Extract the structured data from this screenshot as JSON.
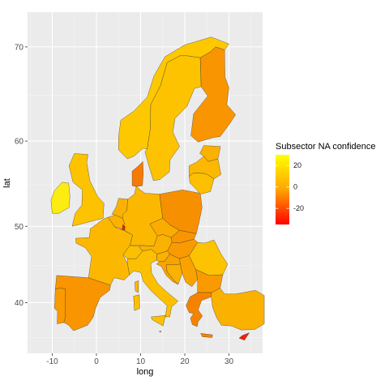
{
  "chart_data": {
    "type": "heatmap",
    "kind": "choropleth map",
    "xlabel": "long",
    "ylabel": "lat",
    "x_ticks": [
      "-10",
      "0",
      "10",
      "20",
      "30"
    ],
    "y_ticks": [
      "40",
      "50",
      "60",
      "70"
    ],
    "xlim": [
      -15,
      37.5
    ],
    "ylim": [
      33,
      75
    ],
    "grid": true,
    "legend": {
      "title": "Subsector  NA  confidence",
      "placement": "right",
      "ticks": [
        "20",
        "0",
        "-20"
      ],
      "range": [
        -35,
        30
      ],
      "colors": {
        "low": "#ff0000",
        "mid": "#ffa500",
        "high": "#ffff00"
      }
    },
    "panel_background": "#ebebeb",
    "region_outline_color": "#333333",
    "regions": [
      {
        "name": "Ireland",
        "value": 24,
        "color": "#fdec12"
      },
      {
        "name": "United Kingdom",
        "value": 10,
        "color": "#fdc300"
      },
      {
        "name": "Portugal",
        "value": -4,
        "color": "#f99a00"
      },
      {
        "name": "Spain",
        "value": -6,
        "color": "#f99500"
      },
      {
        "name": "France",
        "value": 6,
        "color": "#fcb800"
      },
      {
        "name": "Belgium",
        "value": 4,
        "color": "#fbb100"
      },
      {
        "name": "Netherlands",
        "value": 4,
        "color": "#fbb100"
      },
      {
        "name": "Luxembourg",
        "value": -30,
        "color": "#f22200"
      },
      {
        "name": "Germany",
        "value": 6,
        "color": "#fcb800"
      },
      {
        "name": "Denmark",
        "value": -12,
        "color": "#f67a00"
      },
      {
        "name": "Switzerland",
        "value": 8,
        "color": "#fcc000"
      },
      {
        "name": "Italy",
        "value": 8,
        "color": "#fcc000"
      },
      {
        "name": "Malta",
        "value": 0,
        "color": "#fca000"
      },
      {
        "name": "Austria",
        "value": 4,
        "color": "#fbb100"
      },
      {
        "name": "Czech Republic",
        "value": 2,
        "color": "#fbac00"
      },
      {
        "name": "Poland",
        "value": -8,
        "color": "#f79000"
      },
      {
        "name": "Slovakia",
        "value": -6,
        "color": "#f99500"
      },
      {
        "name": "Hungary",
        "value": -4,
        "color": "#f99b00"
      },
      {
        "name": "Slovenia",
        "value": 4,
        "color": "#fbb100"
      },
      {
        "name": "Croatia",
        "value": -2,
        "color": "#faa300"
      },
      {
        "name": "Bosnia and Herzegovina",
        "value": 4,
        "color": "#fbb100"
      },
      {
        "name": "Serbia",
        "value": -2,
        "color": "#faa300"
      },
      {
        "name": "Romania",
        "value": 10,
        "color": "#fdc300"
      },
      {
        "name": "Bulgaria",
        "value": -4,
        "color": "#f99b00"
      },
      {
        "name": "Greece",
        "value": -10,
        "color": "#f68300"
      },
      {
        "name": "Turkey",
        "value": 4,
        "color": "#fbb100"
      },
      {
        "name": "Cyprus",
        "value": -30,
        "color": "#f22200"
      },
      {
        "name": "Norway",
        "value": 12,
        "color": "#fdc800"
      },
      {
        "name": "Sweden",
        "value": 10,
        "color": "#fdc300"
      },
      {
        "name": "Finland",
        "value": -6,
        "color": "#f99500"
      },
      {
        "name": "Estonia",
        "value": 4,
        "color": "#fbb100"
      },
      {
        "name": "Latvia",
        "value": 6,
        "color": "#fcb800"
      },
      {
        "name": "Lithuania",
        "value": 8,
        "color": "#fcc000"
      }
    ]
  }
}
